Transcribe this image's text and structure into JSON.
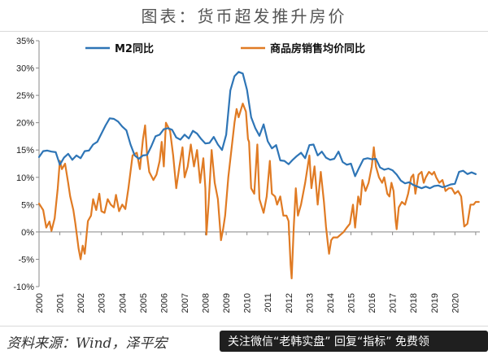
{
  "header": {
    "title": "图表：货币超发推升房价"
  },
  "footer": {
    "source": "资料来源：Wind，泽平宏",
    "watermark": "关注微信“老韩实盘” 回复“指标” 免费领"
  },
  "chart_data": {
    "type": "line",
    "title": "图表：货币超发推升房价",
    "xlabel": "",
    "ylabel": "",
    "xlim": [
      2000,
      2021.2
    ],
    "ylim": [
      -10,
      35
    ],
    "x_ticks": [
      "2000",
      "2001",
      "2002",
      "2003",
      "2004",
      "2005",
      "2006",
      "2007",
      "2008",
      "2009",
      "2010",
      "2011",
      "2012",
      "2013",
      "2014",
      "2015",
      "2016",
      "2017",
      "2018",
      "2019",
      "2020"
    ],
    "y_ticks": [
      "-10%",
      "-5%",
      "0%",
      "5%",
      "10%",
      "15%",
      "20%",
      "25%",
      "30%",
      "35%"
    ],
    "grid": false,
    "legend_placement": "top",
    "series": [
      {
        "name": "M2同比",
        "color": "#2e75b6",
        "points": [
          [
            2000.0,
            13.7
          ],
          [
            2000.2,
            14.8
          ],
          [
            2000.4,
            14.9
          ],
          [
            2000.6,
            14.7
          ],
          [
            2000.8,
            14.6
          ],
          [
            2001.0,
            12.3
          ],
          [
            2001.2,
            13.6
          ],
          [
            2001.4,
            14.3
          ],
          [
            2001.6,
            13.2
          ],
          [
            2001.8,
            14.0
          ],
          [
            2002.0,
            13.5
          ],
          [
            2002.2,
            14.8
          ],
          [
            2002.4,
            14.9
          ],
          [
            2002.6,
            16.0
          ],
          [
            2002.8,
            16.5
          ],
          [
            2003.0,
            18.0
          ],
          [
            2003.2,
            19.5
          ],
          [
            2003.4,
            20.8
          ],
          [
            2003.6,
            20.7
          ],
          [
            2003.8,
            20.2
          ],
          [
            2004.0,
            19.3
          ],
          [
            2004.2,
            18.6
          ],
          [
            2004.4,
            16.0
          ],
          [
            2004.6,
            14.0
          ],
          [
            2004.8,
            13.4
          ],
          [
            2005.0,
            14.0
          ],
          [
            2005.2,
            14.1
          ],
          [
            2005.4,
            15.7
          ],
          [
            2005.6,
            17.5
          ],
          [
            2005.8,
            17.8
          ],
          [
            2006.0,
            18.8
          ],
          [
            2006.2,
            19.0
          ],
          [
            2006.4,
            18.7
          ],
          [
            2006.6,
            17.3
          ],
          [
            2006.8,
            16.9
          ],
          [
            2007.0,
            17.8
          ],
          [
            2007.2,
            17.1
          ],
          [
            2007.4,
            18.5
          ],
          [
            2007.6,
            18.0
          ],
          [
            2007.8,
            17.0
          ],
          [
            2008.0,
            16.2
          ],
          [
            2008.2,
            16.3
          ],
          [
            2008.4,
            17.4
          ],
          [
            2008.6,
            16.0
          ],
          [
            2008.8,
            15.0
          ],
          [
            2009.0,
            17.8
          ],
          [
            2009.2,
            25.9
          ],
          [
            2009.4,
            28.5
          ],
          [
            2009.6,
            29.3
          ],
          [
            2009.8,
            29.0
          ],
          [
            2010.0,
            26.0
          ],
          [
            2010.2,
            21.0
          ],
          [
            2010.4,
            19.0
          ],
          [
            2010.6,
            17.6
          ],
          [
            2010.8,
            19.7
          ],
          [
            2011.0,
            16.6
          ],
          [
            2011.2,
            15.3
          ],
          [
            2011.4,
            15.9
          ],
          [
            2011.6,
            13.1
          ],
          [
            2011.8,
            13.0
          ],
          [
            2012.0,
            12.4
          ],
          [
            2012.2,
            13.2
          ],
          [
            2012.4,
            13.9
          ],
          [
            2012.6,
            14.5
          ],
          [
            2012.8,
            13.5
          ],
          [
            2013.0,
            15.9
          ],
          [
            2013.2,
            16.0
          ],
          [
            2013.4,
            14.0
          ],
          [
            2013.6,
            14.7
          ],
          [
            2013.8,
            13.6
          ],
          [
            2014.0,
            13.2
          ],
          [
            2014.2,
            13.4
          ],
          [
            2014.4,
            14.7
          ],
          [
            2014.6,
            12.8
          ],
          [
            2014.8,
            12.3
          ],
          [
            2015.0,
            12.5
          ],
          [
            2015.2,
            10.2
          ],
          [
            2015.4,
            11.8
          ],
          [
            2015.6,
            13.3
          ],
          [
            2015.8,
            13.5
          ],
          [
            2016.0,
            13.3
          ],
          [
            2016.2,
            13.4
          ],
          [
            2016.4,
            11.8
          ],
          [
            2016.6,
            11.4
          ],
          [
            2016.8,
            11.6
          ],
          [
            2017.0,
            11.3
          ],
          [
            2017.2,
            10.5
          ],
          [
            2017.4,
            9.4
          ],
          [
            2017.6,
            8.9
          ],
          [
            2017.8,
            9.1
          ],
          [
            2018.0,
            8.6
          ],
          [
            2018.2,
            8.3
          ],
          [
            2018.4,
            8.0
          ],
          [
            2018.6,
            8.3
          ],
          [
            2018.8,
            8.0
          ],
          [
            2019.0,
            8.4
          ],
          [
            2019.2,
            8.5
          ],
          [
            2019.4,
            8.2
          ],
          [
            2019.6,
            8.4
          ],
          [
            2019.8,
            8.7
          ],
          [
            2020.0,
            8.8
          ],
          [
            2020.2,
            11.0
          ],
          [
            2020.4,
            11.2
          ],
          [
            2020.6,
            10.6
          ],
          [
            2020.8,
            10.9
          ],
          [
            2021.0,
            10.6
          ]
        ]
      },
      {
        "name": "商品房销售均价同比",
        "color": "#e07b24",
        "points": [
          [
            2000.0,
            5.2
          ],
          [
            2000.2,
            4.0
          ],
          [
            2000.35,
            0.8
          ],
          [
            2000.5,
            1.9
          ],
          [
            2000.6,
            0.2
          ],
          [
            2000.75,
            2.5
          ],
          [
            2000.9,
            8.0
          ],
          [
            2001.0,
            13.0
          ],
          [
            2001.1,
            11.5
          ],
          [
            2001.25,
            12.5
          ],
          [
            2001.4,
            9.0
          ],
          [
            2001.5,
            6.5
          ],
          [
            2001.65,
            4.0
          ],
          [
            2001.75,
            1.5
          ],
          [
            2001.9,
            -3.0
          ],
          [
            2002.0,
            -5.0
          ],
          [
            2002.1,
            -2.5
          ],
          [
            2002.2,
            -4.0
          ],
          [
            2002.35,
            2.0
          ],
          [
            2002.5,
            3.0
          ],
          [
            2002.6,
            6.0
          ],
          [
            2002.75,
            4.0
          ],
          [
            2002.9,
            7.0
          ],
          [
            2003.0,
            3.8
          ],
          [
            2003.15,
            3.5
          ],
          [
            2003.3,
            6.0
          ],
          [
            2003.45,
            5.0
          ],
          [
            2003.6,
            4.5
          ],
          [
            2003.7,
            6.8
          ],
          [
            2003.85,
            3.8
          ],
          [
            2004.0,
            5.0
          ],
          [
            2004.15,
            4.2
          ],
          [
            2004.3,
            8.0
          ],
          [
            2004.5,
            14.0
          ],
          [
            2004.7,
            14.5
          ],
          [
            2004.85,
            11.5
          ],
          [
            2005.0,
            17.0
          ],
          [
            2005.1,
            19.5
          ],
          [
            2005.2,
            14.0
          ],
          [
            2005.3,
            11.0
          ],
          [
            2005.5,
            9.5
          ],
          [
            2005.65,
            10.5
          ],
          [
            2005.8,
            13.0
          ],
          [
            2005.9,
            16.5
          ],
          [
            2006.0,
            12.0
          ],
          [
            2006.1,
            20.0
          ],
          [
            2006.3,
            18.5
          ],
          [
            2006.45,
            14.0
          ],
          [
            2006.6,
            8.0
          ],
          [
            2006.75,
            12.0
          ],
          [
            2006.9,
            15.5
          ],
          [
            2007.0,
            10.0
          ],
          [
            2007.15,
            12.0
          ],
          [
            2007.3,
            16.0
          ],
          [
            2007.45,
            12.0
          ],
          [
            2007.6,
            15.0
          ],
          [
            2007.75,
            9.0
          ],
          [
            2007.9,
            13.5
          ],
          [
            2008.0,
            8.0
          ],
          [
            2008.05,
            -0.5
          ],
          [
            2008.15,
            5.0
          ],
          [
            2008.3,
            15.0
          ],
          [
            2008.45,
            9.0
          ],
          [
            2008.6,
            6.0
          ],
          [
            2008.75,
            -1.5
          ],
          [
            2008.85,
            0.5
          ],
          [
            2008.95,
            3.0
          ],
          [
            2009.1,
            10.0
          ],
          [
            2009.25,
            15.0
          ],
          [
            2009.4,
            20.0
          ],
          [
            2009.5,
            22.5
          ],
          [
            2009.6,
            21.0
          ],
          [
            2009.8,
            23.5
          ],
          [
            2009.95,
            22.0
          ],
          [
            2010.05,
            17.0
          ],
          [
            2010.1,
            16.5
          ],
          [
            2010.2,
            8.0
          ],
          [
            2010.35,
            7.0
          ],
          [
            2010.5,
            16.0
          ],
          [
            2010.6,
            6.0
          ],
          [
            2010.8,
            3.5
          ],
          [
            2010.95,
            6.5
          ],
          [
            2011.1,
            13.0
          ],
          [
            2011.2,
            7.0
          ],
          [
            2011.35,
            6.5
          ],
          [
            2011.45,
            5.0
          ],
          [
            2011.6,
            6.5
          ],
          [
            2011.75,
            3.0
          ],
          [
            2011.9,
            3.0
          ],
          [
            2012.0,
            2.0
          ],
          [
            2012.1,
            -6.0
          ],
          [
            2012.15,
            -8.5
          ],
          [
            2012.25,
            1.0
          ],
          [
            2012.35,
            8.0
          ],
          [
            2012.45,
            3.0
          ],
          [
            2012.6,
            5.0
          ],
          [
            2012.8,
            9.0
          ],
          [
            2013.0,
            14.0
          ],
          [
            2013.1,
            8.0
          ],
          [
            2013.25,
            12.0
          ],
          [
            2013.4,
            5.0
          ],
          [
            2013.55,
            11.0
          ],
          [
            2013.7,
            5.5
          ],
          [
            2013.8,
            1.0
          ],
          [
            2013.9,
            -2.5
          ],
          [
            2013.95,
            -4.0
          ],
          [
            2014.05,
            -1.5
          ],
          [
            2014.15,
            -1.0
          ],
          [
            2014.35,
            -1.0
          ],
          [
            2014.5,
            -0.5
          ],
          [
            2014.65,
            0.0
          ],
          [
            2014.8,
            0.8
          ],
          [
            2014.95,
            1.5
          ],
          [
            2015.1,
            5.0
          ],
          [
            2015.2,
            0.8
          ],
          [
            2015.35,
            6.5
          ],
          [
            2015.45,
            5.0
          ],
          [
            2015.55,
            9.5
          ],
          [
            2015.7,
            7.5
          ],
          [
            2015.85,
            9.0
          ],
          [
            2016.0,
            12.0
          ],
          [
            2016.1,
            15.5
          ],
          [
            2016.2,
            12.0
          ],
          [
            2016.35,
            10.0
          ],
          [
            2016.5,
            9.0
          ],
          [
            2016.6,
            10.0
          ],
          [
            2016.75,
            7.0
          ],
          [
            2016.85,
            6.5
          ],
          [
            2016.95,
            9.0
          ],
          [
            2017.05,
            7.5
          ],
          [
            2017.15,
            2.0
          ],
          [
            2017.2,
            0.5
          ],
          [
            2017.3,
            4.5
          ],
          [
            2017.45,
            5.5
          ],
          [
            2017.6,
            5.0
          ],
          [
            2017.75,
            7.0
          ],
          [
            2017.9,
            10.0
          ],
          [
            2018.0,
            10.5
          ],
          [
            2018.1,
            7.0
          ],
          [
            2018.25,
            10.5
          ],
          [
            2018.4,
            11.0
          ],
          [
            2018.5,
            9.0
          ],
          [
            2018.6,
            10.0
          ],
          [
            2018.75,
            11.0
          ],
          [
            2018.9,
            10.5
          ],
          [
            2019.0,
            11.0
          ],
          [
            2019.1,
            10.0
          ],
          [
            2019.25,
            9.0
          ],
          [
            2019.4,
            9.5
          ],
          [
            2019.55,
            7.5
          ],
          [
            2019.7,
            8.0
          ],
          [
            2019.85,
            8.0
          ],
          [
            2020.0,
            7.0
          ],
          [
            2020.15,
            7.5
          ],
          [
            2020.3,
            6.5
          ],
          [
            2020.45,
            1.0
          ],
          [
            2020.6,
            1.5
          ],
          [
            2020.75,
            5.0
          ],
          [
            2020.9,
            5.0
          ],
          [
            2021.0,
            5.5
          ],
          [
            2021.15,
            5.5
          ]
        ]
      }
    ]
  }
}
